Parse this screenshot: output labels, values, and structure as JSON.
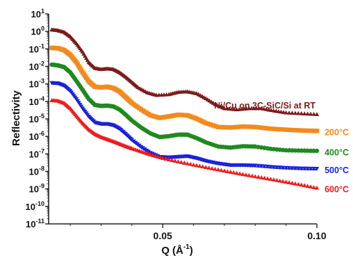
{
  "chart_data": {
    "type": "line",
    "title": "",
    "xlabel": "Q (Å",
    "xlabel_sup": "-1",
    "xlabel_close": ")",
    "ylabel": "Reflectivity",
    "log_y": true,
    "xlim": [
      0.013,
      0.1
    ],
    "ylim_exp": [
      -11,
      1
    ],
    "x_ticks": [
      0.05,
      0.1
    ],
    "x_tick_labels": [
      "0.05",
      "0.10"
    ],
    "y_ticks_exp": [
      1,
      0,
      -1,
      -2,
      -3,
      -4,
      -5,
      -6,
      -7,
      -8,
      -9,
      -10,
      -11
    ],
    "y_tick_labels": [
      "10",
      "10",
      "10",
      "10",
      "10",
      "10",
      "10",
      "10",
      "10",
      "10",
      "10",
      "10",
      "10"
    ],
    "y_tick_exponents": [
      "1",
      "0",
      "-1",
      "-2",
      "-3",
      "-4",
      "-5",
      "-6",
      "-7",
      "-8",
      "-9",
      "-10",
      "-11"
    ],
    "series": [
      {
        "name": "Ni/Cu on 3C-SiC/Si at RT",
        "color": "#7b1a1a",
        "marker": "triangle",
        "points": [
          [
            0.014,
            1.1
          ],
          [
            0.016,
            1.0
          ],
          [
            0.018,
            0.8
          ],
          [
            0.02,
            0.45
          ],
          [
            0.022,
            0.18
          ],
          [
            0.024,
            0.06
          ],
          [
            0.026,
            0.015
          ],
          [
            0.028,
            0.007
          ],
          [
            0.03,
            0.006
          ],
          [
            0.032,
            0.0065
          ],
          [
            0.034,
            0.006
          ],
          [
            0.036,
            0.004
          ],
          [
            0.038,
            0.0022
          ],
          [
            0.04,
            0.0011
          ],
          [
            0.042,
            0.00055
          ],
          [
            0.045,
            0.00028
          ],
          [
            0.048,
            0.0002
          ],
          [
            0.052,
            0.00022
          ],
          [
            0.055,
            0.0003
          ],
          [
            0.058,
            0.00032
          ],
          [
            0.061,
            0.00025
          ],
          [
            0.064,
            0.00013
          ],
          [
            0.067,
            6e-05
          ],
          [
            0.07,
            3.5e-05
          ],
          [
            0.074,
            3e-05
          ],
          [
            0.078,
            3.5e-05
          ],
          [
            0.082,
            3.5e-05
          ],
          [
            0.086,
            2.6e-05
          ],
          [
            0.09,
            2e-05
          ],
          [
            0.095,
            1.8e-05
          ],
          [
            0.1,
            1.6e-05
          ]
        ]
      },
      {
        "name": "200°C",
        "color": "#f28a1e",
        "marker": "square",
        "points": [
          [
            0.014,
            0.1
          ],
          [
            0.016,
            0.095
          ],
          [
            0.018,
            0.075
          ],
          [
            0.02,
            0.04
          ],
          [
            0.022,
            0.015
          ],
          [
            0.024,
            0.004
          ],
          [
            0.026,
            0.0012
          ],
          [
            0.028,
            0.0006
          ],
          [
            0.03,
            0.00055
          ],
          [
            0.032,
            0.0006
          ],
          [
            0.034,
            0.0005
          ],
          [
            0.036,
            0.00032
          ],
          [
            0.038,
            0.00015
          ],
          [
            0.04,
            7e-05
          ],
          [
            0.043,
            3e-05
          ],
          [
            0.046,
            1.4e-05
          ],
          [
            0.049,
            1e-05
          ],
          [
            0.052,
            1.2e-05
          ],
          [
            0.055,
            1.5e-05
          ],
          [
            0.058,
            1.4e-05
          ],
          [
            0.061,
            9e-06
          ],
          [
            0.064,
            5e-06
          ],
          [
            0.068,
            3e-06
          ],
          [
            0.072,
            2.8e-06
          ],
          [
            0.076,
            3.2e-06
          ],
          [
            0.08,
            3e-06
          ],
          [
            0.085,
            2.4e-06
          ],
          [
            0.09,
            2.1e-06
          ],
          [
            0.095,
            1.9e-06
          ],
          [
            0.1,
            1.8e-06
          ]
        ]
      },
      {
        "name": "400°C",
        "color": "#1f8a1f",
        "marker": "circle",
        "points": [
          [
            0.014,
            0.011
          ],
          [
            0.016,
            0.01
          ],
          [
            0.018,
            0.008
          ],
          [
            0.02,
            0.004
          ],
          [
            0.022,
            0.0013
          ],
          [
            0.024,
            0.0004
          ],
          [
            0.026,
            0.00012
          ],
          [
            0.028,
            5.5e-05
          ],
          [
            0.03,
            4.8e-05
          ],
          [
            0.032,
            5e-05
          ],
          [
            0.034,
            4.5e-05
          ],
          [
            0.036,
            3e-05
          ],
          [
            0.038,
            1.5e-05
          ],
          [
            0.04,
            7e-06
          ],
          [
            0.043,
            2.8e-06
          ],
          [
            0.046,
            1.3e-06
          ],
          [
            0.049,
            8e-07
          ],
          [
            0.052,
            9e-07
          ],
          [
            0.055,
            1.1e-06
          ],
          [
            0.058,
            1.1e-06
          ],
          [
            0.061,
            7e-07
          ],
          [
            0.064,
            4e-07
          ],
          [
            0.068,
            2.3e-07
          ],
          [
            0.072,
            2e-07
          ],
          [
            0.076,
            2.4e-07
          ],
          [
            0.08,
            2.3e-07
          ],
          [
            0.085,
            1.7e-07
          ],
          [
            0.09,
            1.4e-07
          ],
          [
            0.095,
            1.35e-07
          ],
          [
            0.1,
            1.3e-07
          ]
        ]
      },
      {
        "name": "500°C",
        "color": "#1a22d8",
        "marker": "triangle-down",
        "points": [
          [
            0.014,
            0.001
          ],
          [
            0.016,
            0.00095
          ],
          [
            0.018,
            0.0007
          ],
          [
            0.02,
            0.00035
          ],
          [
            0.022,
            0.00012
          ],
          [
            0.024,
            3.5e-05
          ],
          [
            0.026,
            1.2e-05
          ],
          [
            0.028,
            5.5e-06
          ],
          [
            0.03,
            4.5e-06
          ],
          [
            0.032,
            4.5e-06
          ],
          [
            0.034,
            3.8e-06
          ],
          [
            0.036,
            2.4e-06
          ],
          [
            0.038,
            1.2e-06
          ],
          [
            0.04,
            5.5e-07
          ],
          [
            0.043,
            2.2e-07
          ],
          [
            0.046,
            1e-07
          ],
          [
            0.049,
            6e-08
          ],
          [
            0.052,
            5.5e-08
          ],
          [
            0.055,
            6e-08
          ],
          [
            0.058,
            6.5e-08
          ],
          [
            0.061,
            5e-08
          ],
          [
            0.064,
            3.5e-08
          ],
          [
            0.068,
            2.5e-08
          ],
          [
            0.072,
            2e-08
          ],
          [
            0.076,
            2e-08
          ],
          [
            0.08,
            1.9e-08
          ],
          [
            0.085,
            1.6e-08
          ],
          [
            0.09,
            1.4e-08
          ],
          [
            0.095,
            1.3e-08
          ],
          [
            0.1,
            1.25e-08
          ]
        ]
      },
      {
        "name": "600°C",
        "color": "#ee1c1c",
        "marker": "triangle",
        "points": [
          [
            0.014,
            0.0001
          ],
          [
            0.016,
            9.5e-05
          ],
          [
            0.018,
            7e-05
          ],
          [
            0.02,
            3.5e-05
          ],
          [
            0.022,
            1.3e-05
          ],
          [
            0.024,
            5e-06
          ],
          [
            0.026,
            2.2e-06
          ],
          [
            0.028,
            1.2e-06
          ],
          [
            0.03,
            8e-07
          ],
          [
            0.032,
            6e-07
          ],
          [
            0.034,
            4.5e-07
          ],
          [
            0.036,
            3.3e-07
          ],
          [
            0.038,
            2.4e-07
          ],
          [
            0.04,
            1.8e-07
          ],
          [
            0.043,
            1.2e-07
          ],
          [
            0.046,
            8e-08
          ],
          [
            0.05,
            5e-08
          ],
          [
            0.055,
            3.2e-08
          ],
          [
            0.06,
            2.1e-08
          ],
          [
            0.065,
            1.4e-08
          ],
          [
            0.07,
            9.5e-09
          ],
          [
            0.075,
            6.5e-09
          ],
          [
            0.08,
            4.5e-09
          ],
          [
            0.085,
            3.2e-09
          ],
          [
            0.09,
            2.2e-09
          ],
          [
            0.095,
            1.5e-09
          ],
          [
            0.1,
            1e-09
          ]
        ]
      }
    ]
  }
}
